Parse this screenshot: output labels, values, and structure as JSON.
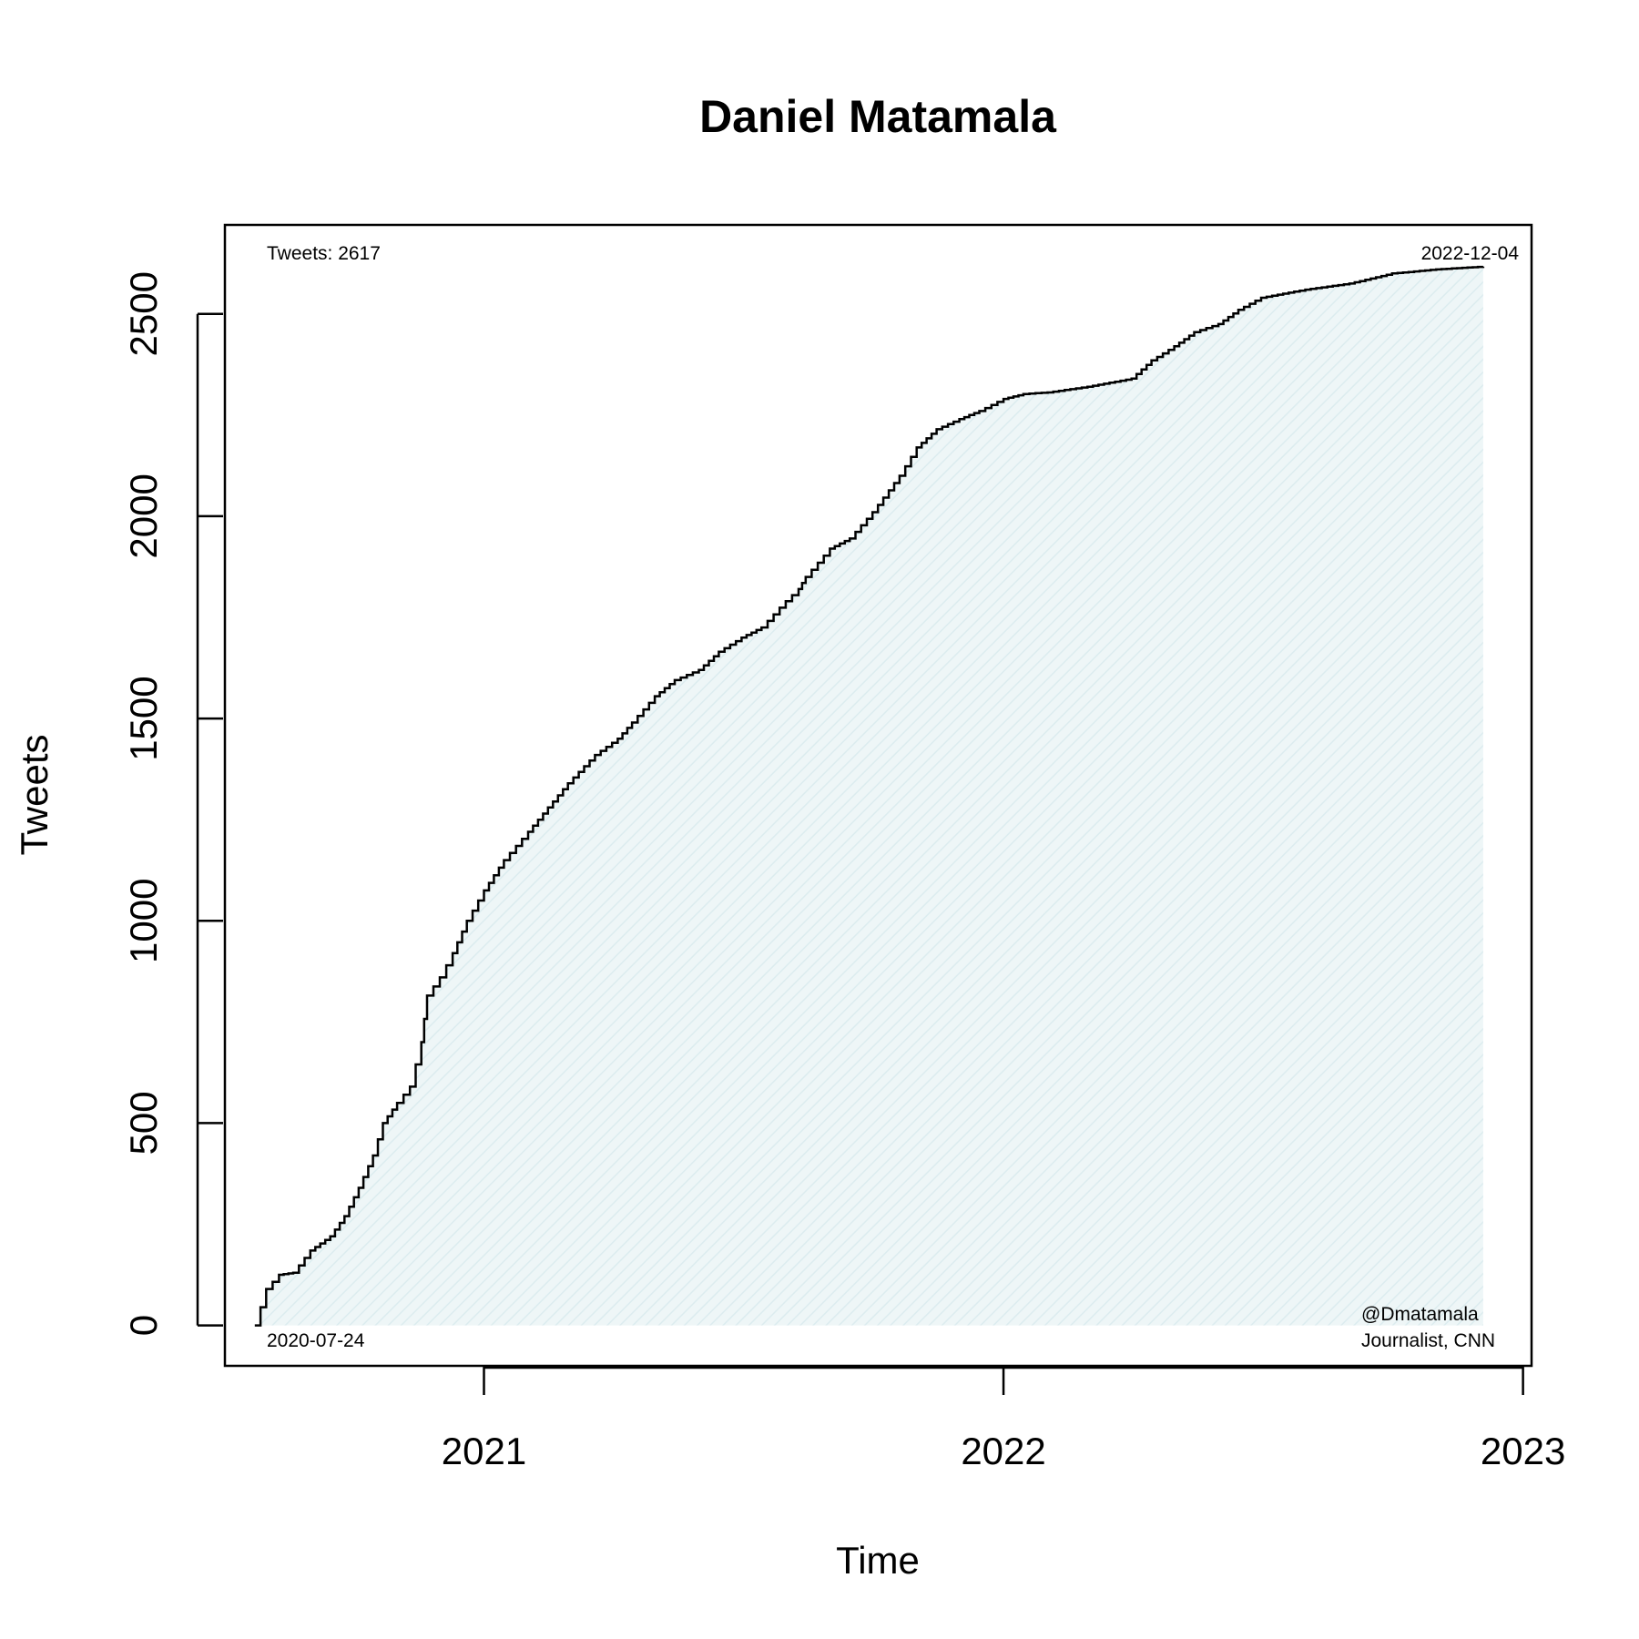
{
  "chart_data": {
    "type": "area",
    "title": "Daniel Matamala",
    "xlabel": "Time",
    "ylabel": "Tweets",
    "x_ticks": [
      "2021",
      "2022",
      "2023"
    ],
    "y_ticks": [
      0,
      500,
      1000,
      1500,
      2000,
      2500
    ],
    "xlim": [
      "2020-07-03",
      "2023-01-07"
    ],
    "ylim": [
      -100,
      2720
    ],
    "annotations": {
      "total": "Tweets: 2617",
      "start_date": "2020-07-24",
      "end_date": "2022-12-04",
      "handle": "@Dmatamala",
      "bio": "Journalist, CNN"
    },
    "fill_color": "#e6f2f4",
    "line_color": "#000000",
    "series": [
      {
        "x": [
          "2020-07-24",
          "2020-08-01",
          "2020-08-10",
          "2020-08-20",
          "2020-09-01",
          "2020-09-15",
          "2020-09-25",
          "2020-10-05",
          "2020-10-15",
          "2020-10-22",
          "2020-11-01",
          "2020-11-10",
          "2020-11-18",
          "2020-11-22",
          "2020-12-01",
          "2020-12-10",
          "2020-12-20",
          "2021-01-01",
          "2021-01-15",
          "2021-02-01",
          "2021-02-15",
          "2021-03-01",
          "2021-03-20",
          "2021-04-05",
          "2021-04-15",
          "2021-05-01",
          "2021-05-15",
          "2021-06-01",
          "2021-06-15",
          "2021-07-01",
          "2021-07-15",
          "2021-08-01",
          "2021-08-10",
          "2021-08-15",
          "2021-09-01",
          "2021-09-15",
          "2021-10-01",
          "2021-10-20",
          "2021-11-01",
          "2021-11-15",
          "2021-12-01",
          "2021-12-15",
          "2022-01-01",
          "2022-01-15",
          "2022-02-01",
          "2022-03-01",
          "2022-04-01",
          "2022-04-15",
          "2022-05-01",
          "2022-05-15",
          "2022-06-01",
          "2022-06-15",
          "2022-07-01",
          "2022-08-01",
          "2022-09-01",
          "2022-10-01",
          "2022-11-01",
          "2022-12-04"
        ],
        "y": [
          0,
          90,
          125,
          130,
          185,
          220,
          270,
          340,
          420,
          500,
          550,
          590,
          700,
          815,
          860,
          920,
          1000,
          1075,
          1150,
          1220,
          1280,
          1340,
          1410,
          1450,
          1490,
          1555,
          1595,
          1620,
          1665,
          1700,
          1725,
          1790,
          1820,
          1850,
          1920,
          1945,
          2010,
          2100,
          2170,
          2215,
          2240,
          2260,
          2290,
          2302,
          2306,
          2320,
          2340,
          2385,
          2420,
          2455,
          2475,
          2510,
          2540,
          2560,
          2575,
          2600,
          2610,
          2617
        ]
      }
    ]
  }
}
